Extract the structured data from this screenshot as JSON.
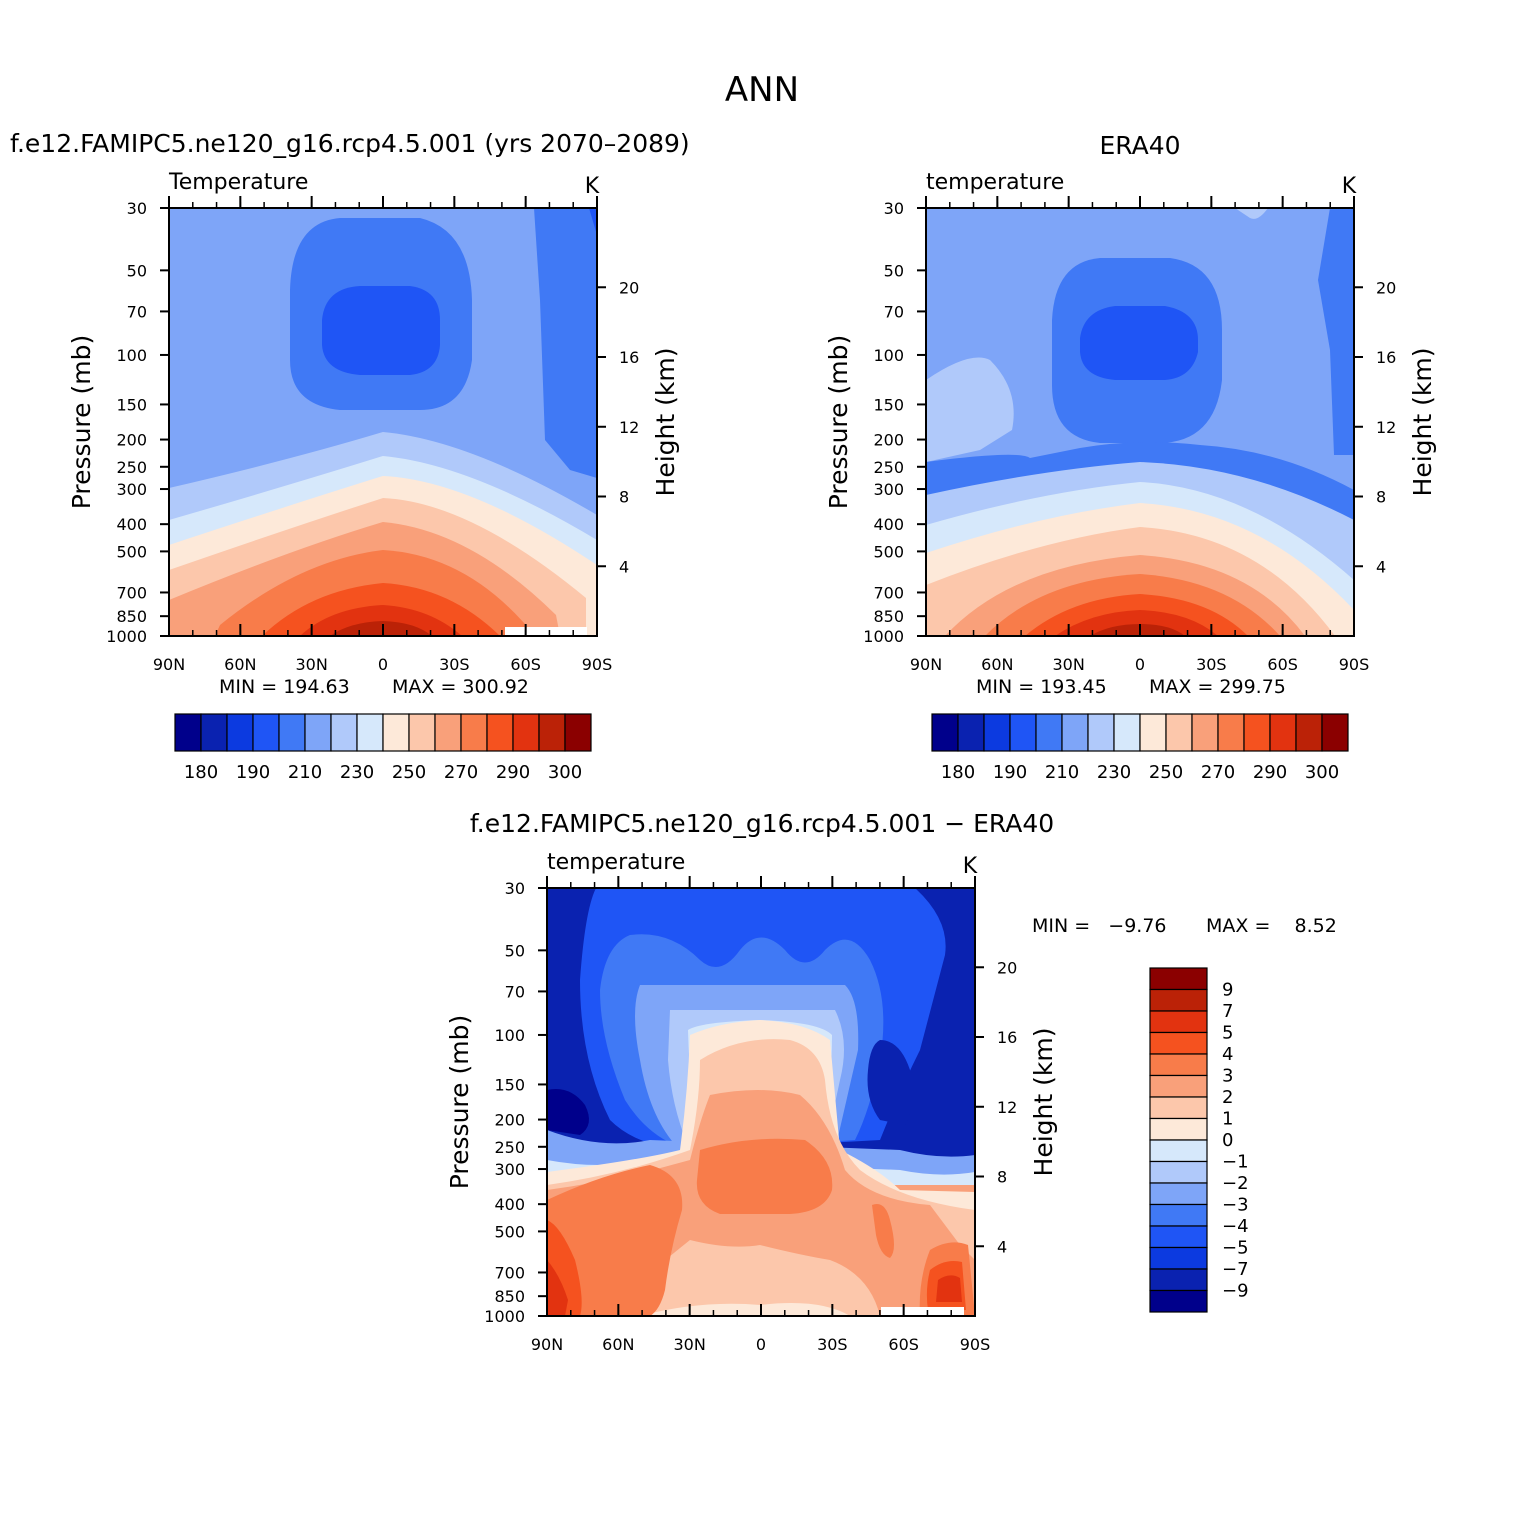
{
  "chart_data": {
    "type": "contour",
    "figure_title": "ANN",
    "panels": [
      {
        "id": "model",
        "title": "f.e12.FAMIPC5.ne120_g16.rcp4.5.001 (yrs 2070–2089)",
        "variable": "Temperature",
        "units": "K",
        "ylabel": "Pressure (mb)",
        "ylabel_right": "Height (km)",
        "x_ticks": [
          "90N",
          "60N",
          "30N",
          "0",
          "30S",
          "60S",
          "90S"
        ],
        "y_ticks": [
          "30",
          "50",
          "70",
          "100",
          "150",
          "200",
          "250",
          "300",
          "400",
          "500",
          "700",
          "850",
          "1000"
        ],
        "y_ticks_right": [
          "20",
          "16",
          "12",
          "8",
          "4"
        ],
        "min_text": "MIN = 194.63",
        "max_text": "MAX = 300.92",
        "min": 194.63,
        "max": 300.92,
        "colorbar_labels": [
          "180",
          "190",
          "210",
          "230",
          "250",
          "270",
          "290",
          "300"
        ],
        "colorbar_orientation": "horizontal"
      },
      {
        "id": "obs",
        "title": "ERA40",
        "variable": "temperature",
        "units": "K",
        "ylabel": "Pressure (mb)",
        "ylabel_right": "Height (km)",
        "x_ticks": [
          "90N",
          "60N",
          "30N",
          "0",
          "30S",
          "60S",
          "90S"
        ],
        "y_ticks": [
          "30",
          "50",
          "70",
          "100",
          "150",
          "200",
          "250",
          "300",
          "400",
          "500",
          "700",
          "850",
          "1000"
        ],
        "y_ticks_right": [
          "20",
          "16",
          "12",
          "8",
          "4"
        ],
        "min_text": "MIN = 193.45",
        "max_text": "MAX = 299.75",
        "min": 193.45,
        "max": 299.75,
        "colorbar_labels": [
          "180",
          "190",
          "210",
          "230",
          "250",
          "270",
          "290",
          "300"
        ],
        "colorbar_orientation": "horizontal"
      },
      {
        "id": "diff",
        "title": "f.e12.FAMIPC5.ne120_g16.rcp4.5.001 − ERA40",
        "variable": "temperature",
        "units": "K",
        "ylabel": "Pressure (mb)",
        "ylabel_right": "Height (km)",
        "x_ticks": [
          "90N",
          "60N",
          "30N",
          "0",
          "30S",
          "60S",
          "90S"
        ],
        "y_ticks": [
          "30",
          "50",
          "70",
          "100",
          "150",
          "200",
          "250",
          "300",
          "400",
          "500",
          "700",
          "850",
          "1000"
        ],
        "y_ticks_right": [
          "20",
          "16",
          "12",
          "8",
          "4"
        ],
        "min_text": "MIN =   −9.76",
        "max_text": "MAX =    8.52",
        "min": -9.76,
        "max": 8.52,
        "colorbar_labels": [
          "9",
          "7",
          "5",
          "4",
          "3",
          "2",
          "1",
          "0",
          "−1",
          "−2",
          "−3",
          "−4",
          "−5",
          "−7",
          "−9"
        ],
        "colorbar_orientation": "vertical"
      }
    ],
    "palette": [
      "#00008b",
      "#0a22b0",
      "#0c3ae0",
      "#1f55f5",
      "#4079f5",
      "#7ea5f8",
      "#b0c9fa",
      "#d6e8fb",
      "#fde9d9",
      "#fcc7ab",
      "#f9a07a",
      "#f87c4a",
      "#f5521f",
      "#e23310",
      "#bb2207",
      "#8b0000"
    ]
  }
}
